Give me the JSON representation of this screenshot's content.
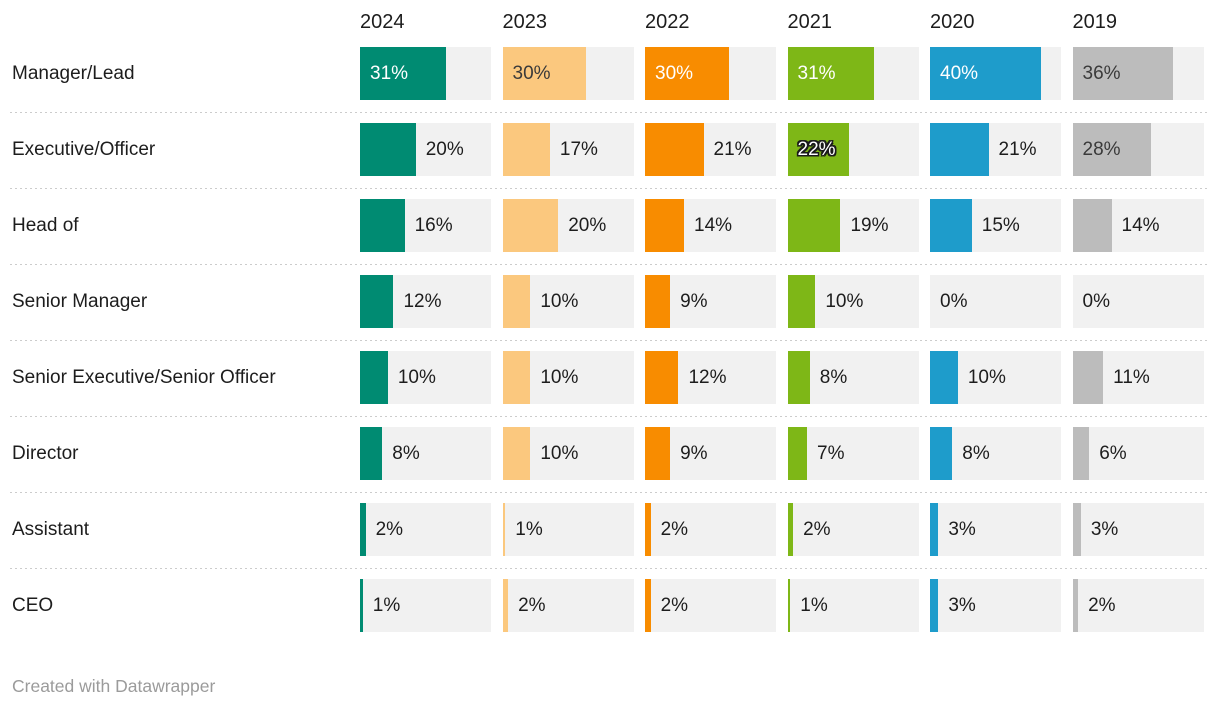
{
  "chart_data": {
    "type": "bar",
    "variant": "split-bars-table",
    "title": "",
    "unit": "%",
    "xlim": [
      0,
      47
    ],
    "grid": false,
    "legend": "column-headers",
    "columns": [
      "2024",
      "2023",
      "2022",
      "2021",
      "2020",
      "2019"
    ],
    "categories": [
      "Manager/Lead",
      "Executive/Officer",
      "Head of",
      "Senior Manager",
      "Senior Executive/Senior Officer",
      "Director",
      "Assistant",
      "CEO"
    ],
    "series": [
      {
        "name": "2024",
        "color": "#008b72",
        "inside_label_color": "#ffffff",
        "values": [
          31,
          20,
          16,
          12,
          10,
          8,
          2,
          1
        ]
      },
      {
        "name": "2023",
        "color": "#fbc87e",
        "inside_label_color": "#3a3a3a",
        "values": [
          30,
          17,
          20,
          10,
          10,
          10,
          1,
          2
        ]
      },
      {
        "name": "2022",
        "color": "#f88c00",
        "inside_label_color": "#ffffff",
        "values": [
          30,
          21,
          14,
          9,
          12,
          9,
          2,
          2
        ]
      },
      {
        "name": "2021",
        "color": "#7eb717",
        "inside_label_color": "#ffffff",
        "values": [
          31,
          22,
          19,
          10,
          8,
          7,
          2,
          1
        ]
      },
      {
        "name": "2020",
        "color": "#1e9ccb",
        "inside_label_color": "#ffffff",
        "values": [
          40,
          21,
          15,
          0,
          10,
          8,
          3,
          3
        ]
      },
      {
        "name": "2019",
        "color": "#bcbcbc",
        "inside_label_color": "#3a3a3a",
        "values": [
          36,
          28,
          14,
          0,
          11,
          6,
          3,
          2
        ]
      }
    ],
    "label_format": "{value}%",
    "inside_label_min_value": 22,
    "halo_cells": [
      {
        "row": 1,
        "col": 3
      }
    ]
  },
  "theme": {
    "track_color": "#f1f1f1",
    "text_color": "#1d1d1d",
    "separator_color": "#cccccc",
    "credit_color": "#9b9b9b"
  },
  "footer": {
    "credit": "Created with Datawrapper"
  }
}
